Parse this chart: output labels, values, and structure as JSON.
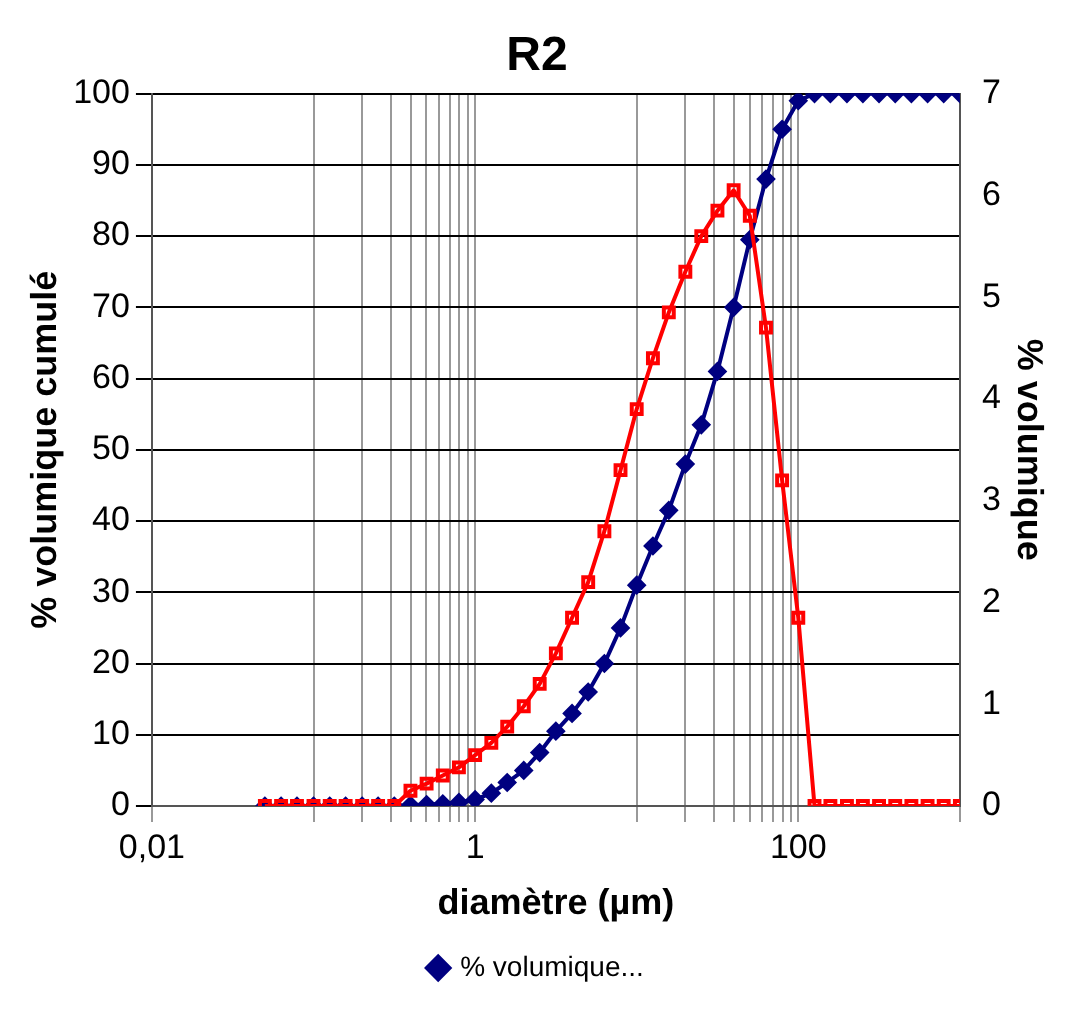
{
  "chart_data": {
    "type": "line",
    "title": "R2",
    "xlabel": "diamètre (µm)",
    "ylabel": "% volumique cumulé",
    "y2label": "% volumique",
    "x": [
      0.05,
      0.063,
      0.079,
      0.1,
      0.126,
      0.158,
      0.2,
      0.251,
      0.316,
      0.398,
      0.501,
      0.631,
      0.794,
      1,
      1.26,
      1.58,
      2,
      2.51,
      3.16,
      3.98,
      5.01,
      6.31,
      7.94,
      10,
      12.6,
      15.8,
      20,
      25.1,
      31.6,
      39.8,
      50.1,
      63.1,
      79.4,
      100,
      126,
      158,
      200,
      251,
      316,
      398,
      501,
      631,
      794,
      1000
    ],
    "series": [
      {
        "name": "% volumique...",
        "color": "#000080",
        "marker": "diamond",
        "values": [
          0,
          0,
          0,
          0,
          0,
          0,
          0,
          0,
          0,
          0.1,
          0.2,
          0.3,
          0.5,
          0.9,
          1.8,
          3.3,
          5,
          7.5,
          10.5,
          13,
          16,
          20,
          25,
          31,
          36.5,
          41.5,
          48,
          53.5,
          61,
          70,
          79.5,
          88,
          95,
          99,
          100,
          100,
          100,
          100,
          100,
          100,
          100,
          100,
          100,
          100
        ]
      },
      {
        "color": "#ff0000",
        "marker": "square",
        "axis": "y2",
        "values": [
          0,
          0,
          0,
          0,
          0,
          0,
          0,
          0,
          0,
          0.15,
          0.22,
          0.3,
          0.38,
          0.5,
          0.62,
          0.78,
          0.98,
          1.2,
          1.5,
          1.85,
          2.2,
          2.7,
          3.3,
          3.9,
          4.4,
          4.85,
          5.25,
          5.6,
          5.85,
          6.05,
          5.8,
          4.7,
          3.2,
          1.85,
          0,
          0,
          0,
          0,
          0,
          0,
          0,
          0,
          0,
          0
        ]
      }
    ],
    "log": "x",
    "xlim": [
      0.01,
      1000
    ],
    "xticks": [
      {
        "value": 0.01,
        "label": "0,01"
      },
      {
        "value": 0.1,
        "label": null
      },
      {
        "value": 0.2,
        "label": null
      },
      {
        "value": 0.3,
        "label": null
      },
      {
        "value": 0.4,
        "label": null
      },
      {
        "value": 0.5,
        "label": null
      },
      {
        "value": 0.6,
        "label": null
      },
      {
        "value": 0.7,
        "label": null
      },
      {
        "value": 0.8,
        "label": null
      },
      {
        "value": 0.9,
        "label": null
      },
      1,
      {
        "value": 10,
        "label": null
      },
      {
        "value": 20,
        "label": null
      },
      {
        "value": 30,
        "label": null
      },
      {
        "value": 40,
        "label": null
      },
      {
        "value": 50,
        "label": null
      },
      {
        "value": 60,
        "label": null
      },
      {
        "value": 70,
        "label": null
      },
      {
        "value": 80,
        "label": null
      },
      {
        "value": 90,
        "label": null
      },
      100,
      {
        "value": 1000,
        "label": null
      }
    ],
    "ylim": [
      0,
      100
    ],
    "yticks": [
      0,
      10,
      20,
      30,
      40,
      50,
      60,
      70,
      80,
      90,
      100
    ],
    "y2lim": [
      0,
      7
    ],
    "y2ticks": [
      0,
      1,
      2,
      3,
      4,
      5,
      6,
      7
    ],
    "grid": true,
    "legend": "bottom"
  }
}
